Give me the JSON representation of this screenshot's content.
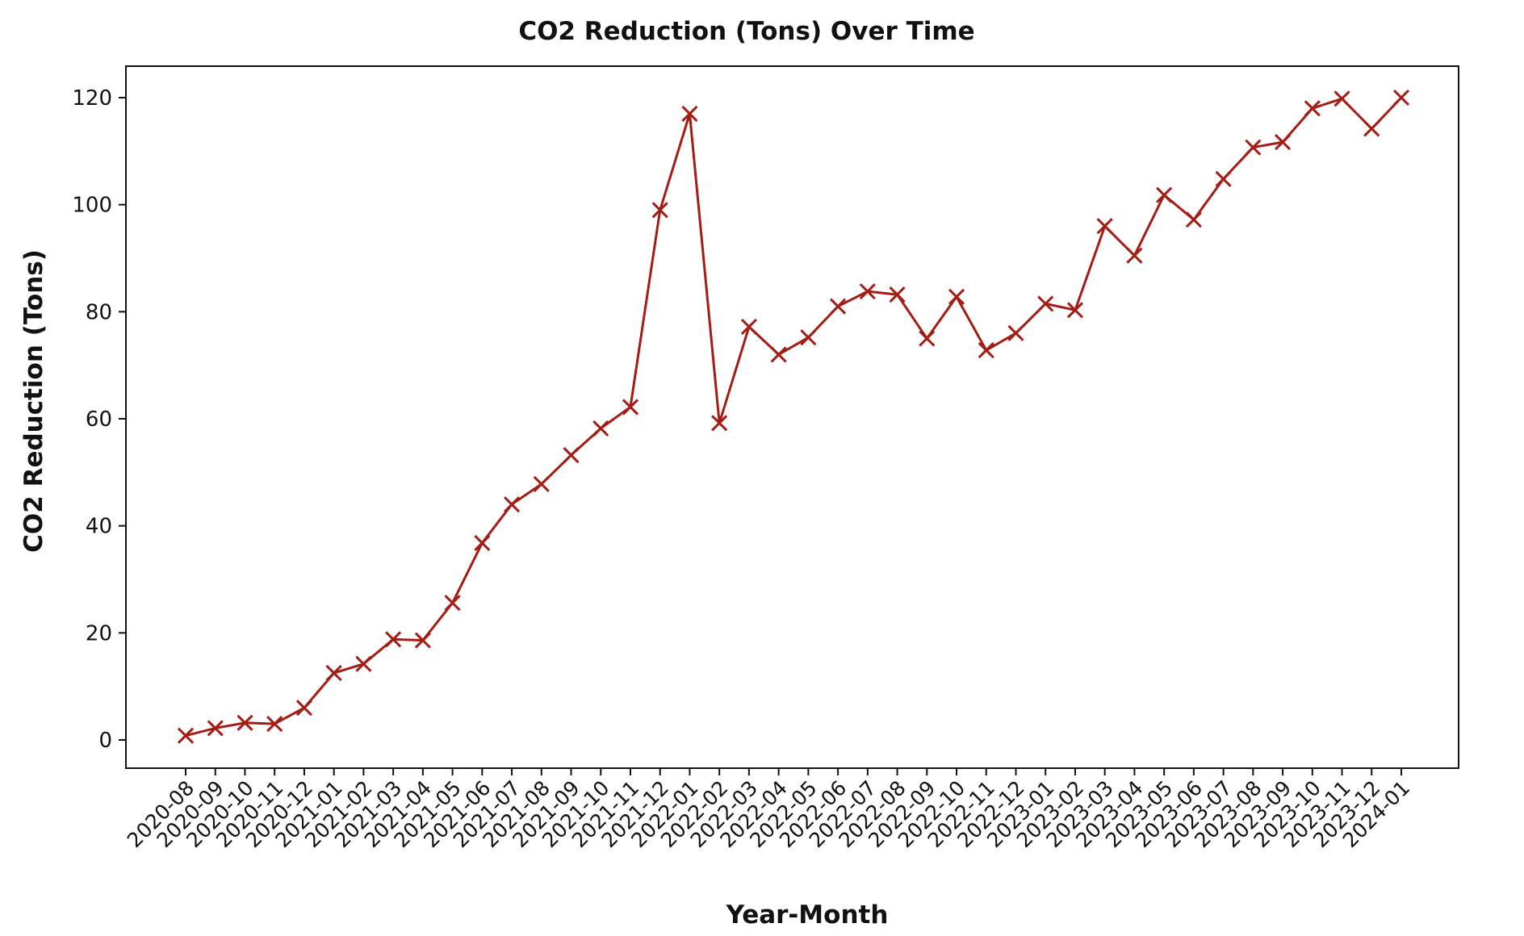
{
  "chart_data": {
    "type": "line",
    "title": "CO2 Reduction (Tons) Over Time",
    "xlabel": "Year-Month",
    "ylabel": "CO2 Reduction (Tons)",
    "ylim": [
      -5,
      125
    ],
    "yticks": [
      0,
      20,
      40,
      60,
      80,
      100,
      120
    ],
    "grid": false,
    "legend": "none",
    "marker": "x",
    "color": "#a41c14",
    "categories": [
      "2020-08",
      "2020-09",
      "2020-10",
      "2020-11",
      "2020-12",
      "2021-01",
      "2021-02",
      "2021-03",
      "2021-04",
      "2021-05",
      "2021-06",
      "2021-07",
      "2021-08",
      "2021-09",
      "2021-10",
      "2021-11",
      "2021-12",
      "2022-01",
      "2022-02",
      "2022-03",
      "2022-04",
      "2022-05",
      "2022-06",
      "2022-07",
      "2022-08",
      "2022-09",
      "2022-10",
      "2022-11",
      "2022-12",
      "2023-01",
      "2023-02",
      "2023-03",
      "2023-04",
      "2023-05",
      "2023-06",
      "2023-07",
      "2023-08",
      "2023-09",
      "2023-10",
      "2023-11",
      "2023-12",
      "2024-01"
    ],
    "values": [
      0.8,
      2.2,
      3.2,
      3.0,
      6.0,
      12.5,
      14.2,
      18.8,
      18.6,
      25.6,
      36.8,
      44.0,
      47.8,
      53.2,
      58.2,
      62.2,
      99.0,
      117.0,
      59.2,
      77.2,
      72.0,
      75.2,
      81.0,
      83.8,
      83.2,
      75.0,
      82.8,
      72.8,
      76.0,
      81.5,
      80.3,
      96.0,
      90.5,
      101.8,
      97.2,
      104.8,
      110.7,
      111.7,
      118.0,
      119.8,
      114.2,
      120.0
    ]
  }
}
